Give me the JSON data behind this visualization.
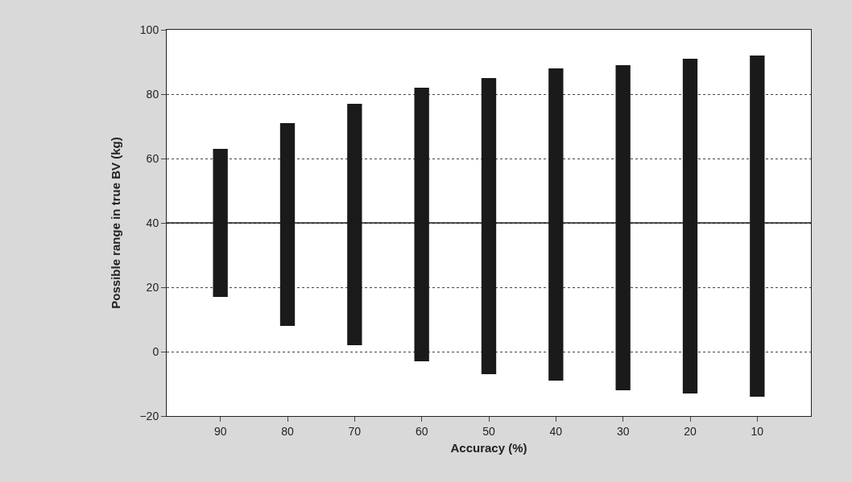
{
  "chart_data": {
    "type": "bar",
    "xlabel": "Accuracy (%)",
    "ylabel": "Possible range in true BV (kg)",
    "categories": [
      "90",
      "80",
      "70",
      "60",
      "50",
      "40",
      "30",
      "20",
      "10"
    ],
    "values": [
      46,
      63,
      75,
      85,
      92,
      97,
      101,
      104,
      106
    ],
    "base": [
      17,
      8,
      2,
      -3,
      -7,
      -9,
      -12,
      -13,
      -14
    ],
    "color": "#1a1a1a",
    "ylim": [
      -20,
      100
    ],
    "yticks": [
      {
        "value": -20,
        "label": "−20"
      },
      0,
      20,
      40,
      60,
      80,
      100
    ],
    "grid": "y",
    "ref_lines": [
      {
        "axis": "y",
        "value": 40,
        "color": "#1a1a1a",
        "line_style": "solid"
      }
    ]
  }
}
